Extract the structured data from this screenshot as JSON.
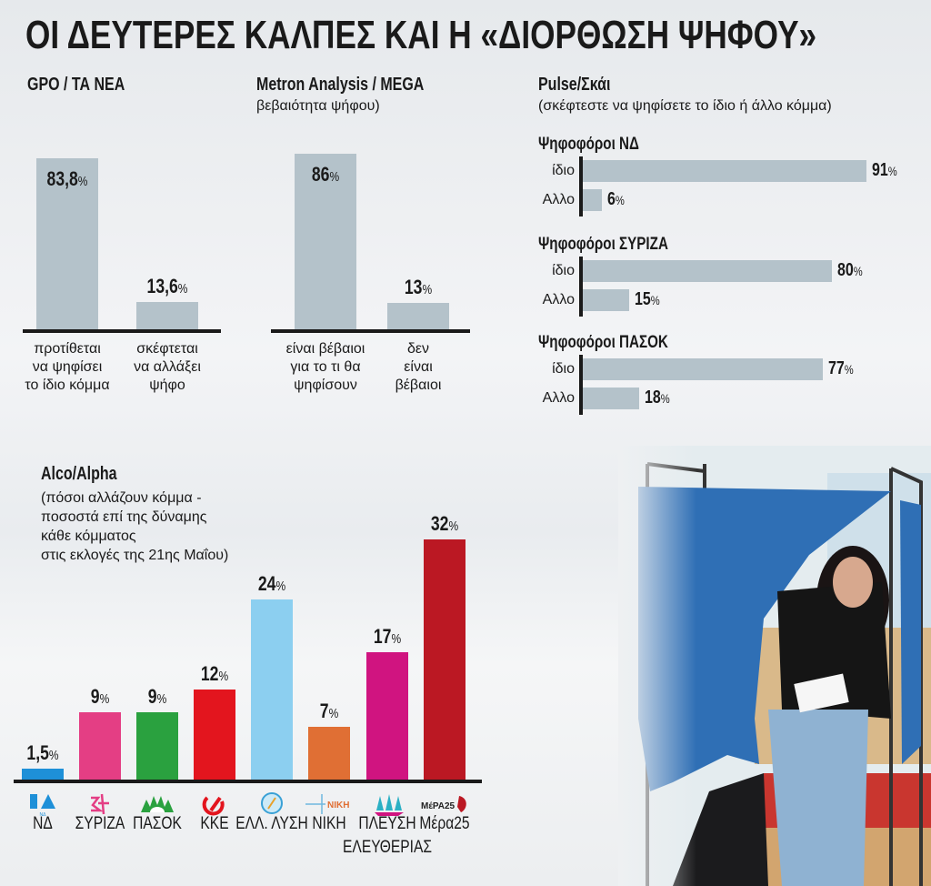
{
  "title": "ΟΙ ΔΕΥΤΕΡΕΣ ΚΑΛΠΕΣ ΚΑΙ  Η «ΔΙΟΡΘΩΣΗ ΨΗΦΟΥ»",
  "chart_data": [
    {
      "type": "bar",
      "title": "GPO / ΤΑ ΝΕΑ",
      "categories": [
        "προτίθεται να ψηφίσει το ίδιο κόμμα",
        "σκέφτεται να αλλάξει ψήφο"
      ],
      "category_lines": [
        [
          "προτίθεται",
          "να ψηφίσει",
          "το ίδιο κόμμα"
        ],
        [
          "σκέφτεται",
          "να αλλάξει",
          "ψήφο"
        ]
      ],
      "values": [
        83.8,
        13.6
      ],
      "labels": [
        "83,8",
        "13,6"
      ],
      "unit": "%",
      "color": "#b4c2ca",
      "ylim": [
        0,
        100
      ]
    },
    {
      "type": "bar",
      "title": "Metron Analysis / MEGA",
      "subtitle": "βεβαιότητα ψήφου)",
      "categories": [
        "είναι βέβαιοι για το τι θα ψηφίσουν",
        "δεν είναι βέβαιοι"
      ],
      "category_lines": [
        [
          "είναι βέβαιοι",
          "για το τι θα",
          "ψηφίσουν"
        ],
        [
          "δεν",
          "είναι",
          "βέβαιοι"
        ]
      ],
      "values": [
        86,
        13
      ],
      "labels": [
        "86",
        "13"
      ],
      "unit": "%",
      "color": "#b4c2ca",
      "ylim": [
        0,
        100
      ]
    },
    {
      "type": "bar",
      "orientation": "horizontal",
      "title": "Pulse/Σκάι",
      "subtitle": "(σκέφτεστε να ψηφίσετε  το ίδιο ή άλλο κόμμα)",
      "categories": [
        "ίδιο",
        "Αλλο"
      ],
      "groups": [
        {
          "name": "Ψηφοφόροι ΝΔ",
          "values": [
            91,
            6
          ]
        },
        {
          "name": "Ψηφοφόροι ΣΥΡΙΖΑ",
          "values": [
            80,
            15
          ]
        },
        {
          "name": "Ψηφοφόροι ΠΑΣΟΚ",
          "values": [
            77,
            18
          ]
        }
      ],
      "unit": "%",
      "color": "#b4c2ca",
      "xlim": [
        0,
        100
      ]
    },
    {
      "type": "bar",
      "title": "Alco/Alpha",
      "subtitle_lines": [
        "(πόσοι αλλάζουν κόμμα -",
        "ποσοστά επί της δύναμης",
        "κάθε κόμματος",
        "στις εκλογές της 21ης Μαΐου)"
      ],
      "categories": [
        "ΝΔ",
        "ΣΥΡΙΖΑ",
        "ΠΑΣΟΚ",
        "ΚΚΕ",
        "ΕΛΛ. ΛΥΣΗ",
        "ΝΙΚΗ",
        "ΠΛΕΥΣΗ ΕΛΕΥΘΕΡΙΑΣ",
        "Μέρα25"
      ],
      "category_lines": [
        [
          "ΝΔ"
        ],
        [
          "ΣΥΡΙΖΑ"
        ],
        [
          "ΠΑΣΟΚ"
        ],
        [
          "ΚΚΕ"
        ],
        [
          "ΕΛΛ. ΛΥΣΗ"
        ],
        [
          "ΝΙΚΗ"
        ],
        [
          "ΠΛΕΥΣΗ",
          "ΕΛΕΥΘΕΡΙΑΣ"
        ],
        [
          "Μέρα25"
        ]
      ],
      "values": [
        1.5,
        9,
        9,
        12,
        24,
        7,
        17,
        32
      ],
      "labels": [
        "1,5",
        "9",
        "9",
        "12",
        "24",
        "7",
        "17",
        "32"
      ],
      "unit": "%",
      "colors": [
        "#1e90d8",
        "#e43e84",
        "#2aa13f",
        "#e3151e",
        "#8ccff0",
        "#e06f34",
        "#d01480",
        "#bb1823"
      ],
      "logos": [
        "nd-logo",
        "syriza-logo",
        "pasok-logo",
        "kke-logo",
        "elliniki-lysi-logo",
        "niki-logo",
        "plefsi-logo",
        "mera25-logo"
      ],
      "logo_text": {
        "nd": "ΝΔ",
        "niki": "ΝΙΚΗ",
        "mera25": "ΜέΡΑ25"
      },
      "ylim": [
        0,
        35
      ]
    }
  ]
}
